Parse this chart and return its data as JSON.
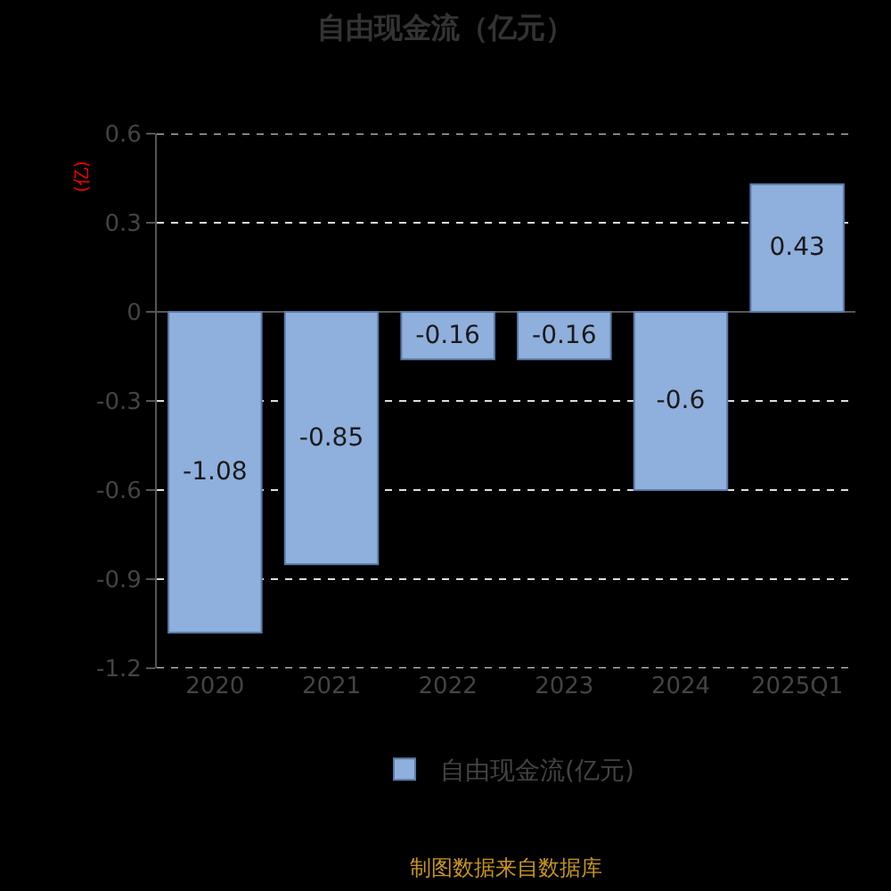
{
  "chart_data": {
    "type": "bar",
    "title": "自由现金流（亿元）",
    "ylabel": "(亿)",
    "categories": [
      "2020",
      "2021",
      "2022",
      "2023",
      "2024",
      "2025Q1"
    ],
    "series": [
      {
        "name": "自由现金流(亿元)",
        "color": "#8fafdc",
        "values": [
          -1.08,
          -0.85,
          -0.16,
          -0.16,
          -0.6,
          0.43
        ]
      }
    ],
    "ylim": [
      -1.2,
      0.6
    ],
    "yticks": [
      -1.2,
      -0.9,
      -0.6,
      -0.3,
      0,
      0.3,
      0.6
    ],
    "grid": "y",
    "legend": "bottom",
    "data_labels": true,
    "annotations": [
      "制图数据来自数据库"
    ]
  }
}
